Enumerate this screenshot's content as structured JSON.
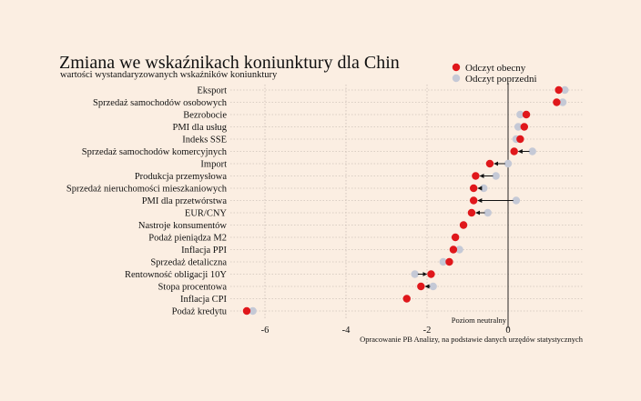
{
  "chart_data": {
    "type": "scatter",
    "title": "Zmiana we wskaźnikach koniunktury dla Chin",
    "subtitle": "wartości wystandaryzowanych wskaźników koniunktury",
    "legend": {
      "placement": "top-right",
      "current_label": "Odczyt obecny",
      "previous_label": "Odczyt poprzedni"
    },
    "colors": {
      "current": "#e0171b",
      "previous": "#c5c9d6",
      "arrow": "#111111",
      "grid": "#b9aea5"
    },
    "x_ticks": [
      -6,
      -4,
      -2,
      0
    ],
    "x_tick_labels": [
      "-6",
      "-4",
      "-2",
      "0"
    ],
    "xlim": [
      -6.6,
      1.9
    ],
    "grid": true,
    "reference_line": {
      "x": 0,
      "label": "Poziom neutralny"
    },
    "source": "Opracowanie PB Analizy, na podstawie danych urzędów statystycznych",
    "categories": [
      "Eksport",
      "Sprzedaż samochodów osobowych",
      "Bezrobocie",
      "PMI dla usług",
      "Indeks SSE",
      "Sprzedaż samochodów komercyjnych",
      "Import",
      "Produkcja przemysłowa",
      "Sprzedaż nieruchomości mieszkaniowych",
      "PMI dla przetwórstwa",
      "EUR/CNY",
      "Nastroje konsumentów",
      "Podaż pieniądza M2",
      "Inflacja PPI",
      "Sprzedaż detaliczna",
      "Rentowność obligacji 10Y",
      "Stopa procentowa",
      "Inflacja CPI",
      "Podaż kredytu"
    ],
    "series": [
      {
        "name": "Odczyt obecny",
        "values": [
          1.25,
          1.2,
          0.45,
          0.4,
          0.3,
          0.15,
          -0.45,
          -0.8,
          -0.85,
          -0.85,
          -0.9,
          -1.1,
          -1.3,
          -1.35,
          -1.45,
          -1.9,
          -2.15,
          -2.5,
          -6.45
        ]
      },
      {
        "name": "Odczyt poprzedni",
        "values": [
          1.4,
          1.35,
          0.3,
          0.25,
          0.2,
          0.6,
          0.0,
          -0.3,
          -0.6,
          0.2,
          -0.5,
          -1.1,
          -1.3,
          -1.2,
          -1.6,
          -2.3,
          -1.85,
          -2.5,
          -6.3
        ]
      }
    ]
  }
}
